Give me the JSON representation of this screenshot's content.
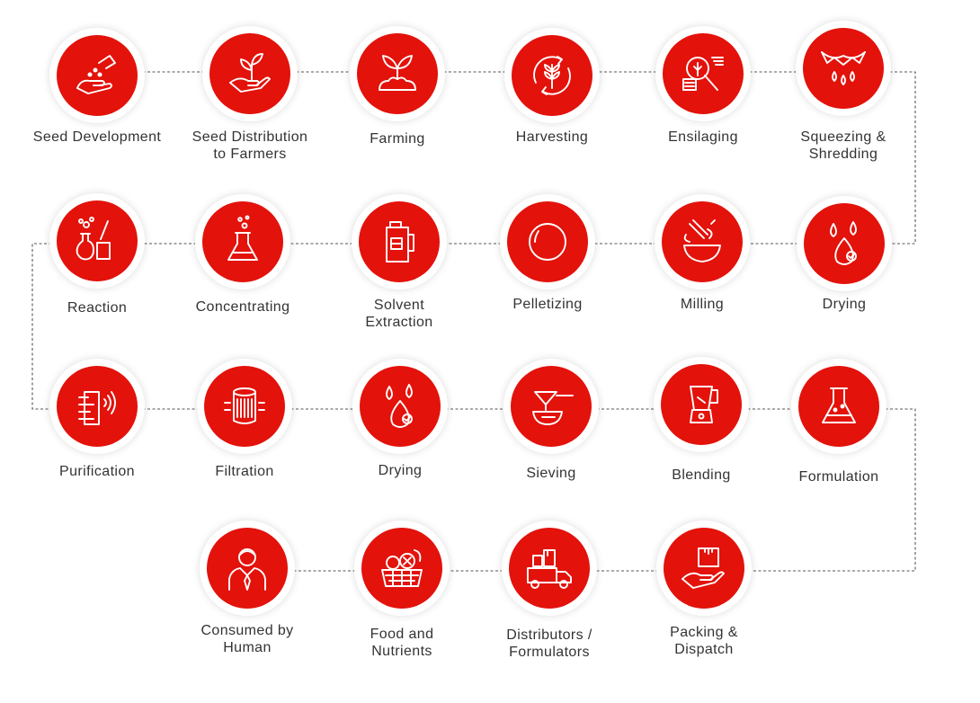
{
  "colors": {
    "accent": "#e3120b",
    "label": "#333333",
    "connector": "#555555"
  },
  "process_steps": [
    {
      "id": "seed-development",
      "label": "Seed Development",
      "icon": "hand-sowing-seeds-icon"
    },
    {
      "id": "seed-distribution",
      "label": "Seed Distribution\nto Farmers",
      "icon": "hand-holding-sprout-icon"
    },
    {
      "id": "farming",
      "label": "Farming",
      "icon": "sprout-in-soil-icon"
    },
    {
      "id": "harvesting",
      "label": "Harvesting",
      "icon": "grain-cycle-icon"
    },
    {
      "id": "ensilaging",
      "label": "Ensilaging",
      "icon": "magnifier-analysis-icon"
    },
    {
      "id": "squeezing-shredding",
      "label": "Squeezing &\nShredding",
      "icon": "wrung-cloth-drops-icon"
    },
    {
      "id": "drying-1",
      "label": "Drying",
      "icon": "drops-icon"
    },
    {
      "id": "milling",
      "label": "Milling",
      "icon": "mixing-bowl-icon"
    },
    {
      "id": "pelletizing",
      "label": "Pelletizing",
      "icon": "pellet-circle-icon"
    },
    {
      "id": "solvent-extraction",
      "label": "Solvent\nExtraction",
      "icon": "solvent-can-icon"
    },
    {
      "id": "concentrating",
      "label": "Concentrating",
      "icon": "flask-icon"
    },
    {
      "id": "reaction",
      "label": "Reaction",
      "icon": "lab-glassware-icon"
    },
    {
      "id": "purification",
      "label": "Purification",
      "icon": "air-purifier-icon"
    },
    {
      "id": "filtration",
      "label": "Filtration",
      "icon": "filter-cartridge-icon"
    },
    {
      "id": "drying-2",
      "label": "Drying",
      "icon": "drops-icon"
    },
    {
      "id": "sieving",
      "label": "Sieving",
      "icon": "sieve-bowl-icon"
    },
    {
      "id": "blending",
      "label": "Blending",
      "icon": "blender-icon"
    },
    {
      "id": "formulation",
      "label": "Formulation",
      "icon": "conical-flask-icon"
    },
    {
      "id": "packing-dispatch",
      "label": "Packing &\nDispatch",
      "icon": "hand-holding-box-icon"
    },
    {
      "id": "distributors-formulators",
      "label": "Distributors /\nFormulators",
      "icon": "delivery-truck-icon"
    },
    {
      "id": "food-nutrients",
      "label": "Food and\nNutrients",
      "icon": "food-basket-icon"
    },
    {
      "id": "consumed-by-human",
      "label": "Consumed by\nHuman",
      "icon": "person-icon"
    }
  ]
}
